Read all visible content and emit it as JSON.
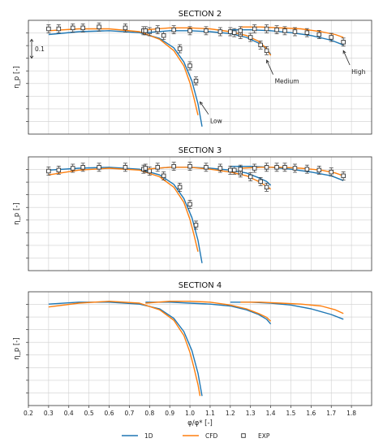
{
  "chart_data": [
    {
      "type": "line",
      "title": "SECTION 2",
      "ylabel": "η_p [-]",
      "xlim": [
        0.2,
        1.9
      ],
      "scale_annotation": "0.1",
      "annotations": [
        "Low",
        "Medium",
        "High"
      ],
      "series": [
        {
          "name": "1D",
          "group": "Low",
          "x": [
            0.3,
            0.45,
            0.6,
            0.75,
            0.85,
            0.92,
            0.97,
            1.01,
            1.04,
            1.06
          ],
          "y": [
            0.925,
            0.94,
            0.945,
            0.935,
            0.905,
            0.855,
            0.78,
            0.68,
            0.56,
            0.44
          ]
        },
        {
          "name": "CFD",
          "group": "Low",
          "x": [
            0.3,
            0.45,
            0.6,
            0.75,
            0.85,
            0.92,
            0.97,
            1.0,
            1.02,
            1.04
          ],
          "y": [
            0.945,
            0.955,
            0.955,
            0.94,
            0.9,
            0.84,
            0.76,
            0.67,
            0.59,
            0.5
          ]
        },
        {
          "name": "EXP",
          "group": "Low",
          "x": [
            0.3,
            0.35,
            0.42,
            0.47,
            0.55,
            0.68,
            0.77,
            0.8,
            0.87,
            0.95,
            1.0,
            1.03
          ],
          "y": [
            0.955,
            0.955,
            0.96,
            0.96,
            0.965,
            0.96,
            0.945,
            0.94,
            0.92,
            0.85,
            0.76,
            0.68
          ]
        },
        {
          "name": "1D",
          "group": "Medium",
          "x": [
            0.78,
            0.9,
            1.0,
            1.1,
            1.2,
            1.28,
            1.34,
            1.38,
            1.4
          ],
          "y": [
            0.935,
            0.945,
            0.945,
            0.94,
            0.93,
            0.91,
            0.88,
            0.85,
            0.82
          ]
        },
        {
          "name": "CFD",
          "group": "Medium",
          "x": [
            0.78,
            0.9,
            1.0,
            1.1,
            1.2,
            1.28,
            1.34,
            1.38,
            1.4
          ],
          "y": [
            0.95,
            0.96,
            0.96,
            0.955,
            0.94,
            0.92,
            0.89,
            0.85,
            0.815
          ]
        },
        {
          "name": "EXP",
          "group": "Medium",
          "x": [
            0.78,
            0.84,
            0.92,
            1.0,
            1.08,
            1.15,
            1.22,
            1.25,
            1.3,
            1.35,
            1.38
          ],
          "y": [
            0.945,
            0.95,
            0.95,
            0.945,
            0.945,
            0.94,
            0.935,
            0.925,
            0.91,
            0.87,
            0.84
          ]
        },
        {
          "name": "1D",
          "group": "High",
          "x": [
            1.2,
            1.3,
            1.4,
            1.5,
            1.6,
            1.7,
            1.76
          ],
          "y": [
            0.95,
            0.95,
            0.945,
            0.935,
            0.92,
            0.895,
            0.87
          ]
        },
        {
          "name": "CFD",
          "group": "High",
          "x": [
            1.25,
            1.35,
            1.45,
            1.55,
            1.65,
            1.72,
            1.76
          ],
          "y": [
            0.965,
            0.965,
            0.96,
            0.955,
            0.94,
            0.925,
            0.91
          ]
        },
        {
          "name": "EXP",
          "group": "High",
          "x": [
            1.2,
            1.25,
            1.32,
            1.38,
            1.43,
            1.47,
            1.52,
            1.58,
            1.64,
            1.7,
            1.76
          ],
          "y": [
            0.94,
            0.945,
            0.955,
            0.955,
            0.95,
            0.945,
            0.94,
            0.935,
            0.925,
            0.91,
            0.885
          ]
        }
      ]
    },
    {
      "type": "line",
      "title": "SECTION 3",
      "ylabel": "η_p [-]",
      "xlim": [
        0.2,
        1.9
      ],
      "series": [
        {
          "name": "1D",
          "group": "Low",
          "x": [
            0.3,
            0.45,
            0.6,
            0.75,
            0.85,
            0.92,
            0.97,
            1.01,
            1.04,
            1.06
          ],
          "y": [
            0.93,
            0.94,
            0.945,
            0.935,
            0.905,
            0.855,
            0.78,
            0.68,
            0.56,
            0.44
          ]
        },
        {
          "name": "CFD",
          "group": "Low",
          "x": [
            0.3,
            0.45,
            0.6,
            0.75,
            0.85,
            0.92,
            0.97,
            1.0,
            1.02,
            1.04
          ],
          "y": [
            0.905,
            0.93,
            0.94,
            0.93,
            0.895,
            0.84,
            0.76,
            0.67,
            0.59,
            0.5
          ]
        },
        {
          "name": "EXP",
          "group": "Low",
          "x": [
            0.3,
            0.35,
            0.42,
            0.47,
            0.55,
            0.68,
            0.77,
            0.8,
            0.87,
            0.95,
            1.0,
            1.03
          ],
          "y": [
            0.925,
            0.93,
            0.94,
            0.945,
            0.945,
            0.945,
            0.935,
            0.925,
            0.9,
            0.84,
            0.75,
            0.64
          ]
        },
        {
          "name": "1D",
          "group": "Medium",
          "x": [
            0.78,
            0.9,
            1.0,
            1.1,
            1.2,
            1.28,
            1.34,
            1.38,
            1.4
          ],
          "y": [
            0.935,
            0.945,
            0.945,
            0.94,
            0.93,
            0.915,
            0.89,
            0.87,
            0.85
          ]
        },
        {
          "name": "CFD",
          "group": "Medium",
          "x": [
            0.78,
            0.9,
            1.0,
            1.1,
            1.2,
            1.28,
            1.34,
            1.38,
            1.4
          ],
          "y": [
            0.935,
            0.945,
            0.945,
            0.935,
            0.92,
            0.9,
            0.87,
            0.845,
            0.83
          ]
        },
        {
          "name": "EXP",
          "group": "Medium",
          "x": [
            0.78,
            0.84,
            0.92,
            1.0,
            1.08,
            1.15,
            1.22,
            1.25,
            1.3,
            1.35,
            1.38
          ],
          "y": [
            0.94,
            0.945,
            0.95,
            0.95,
            0.945,
            0.94,
            0.93,
            0.915,
            0.895,
            0.87,
            0.84
          ]
        },
        {
          "name": "1D",
          "group": "High",
          "x": [
            1.2,
            1.3,
            1.4,
            1.5,
            1.6,
            1.7,
            1.76
          ],
          "y": [
            0.95,
            0.95,
            0.945,
            0.935,
            0.92,
            0.9,
            0.875
          ]
        },
        {
          "name": "CFD",
          "group": "High",
          "x": [
            1.25,
            1.35,
            1.45,
            1.55,
            1.65,
            1.72,
            1.76
          ],
          "y": [
            0.94,
            0.945,
            0.945,
            0.94,
            0.93,
            0.915,
            0.9
          ]
        },
        {
          "name": "EXP",
          "group": "High",
          "x": [
            1.2,
            1.25,
            1.32,
            1.38,
            1.43,
            1.47,
            1.52,
            1.58,
            1.64,
            1.7,
            1.76
          ],
          "y": [
            0.93,
            0.935,
            0.94,
            0.945,
            0.945,
            0.945,
            0.94,
            0.935,
            0.93,
            0.92,
            0.9
          ]
        }
      ]
    },
    {
      "type": "line",
      "title": "SECTION 4",
      "ylabel": "η_p [-]",
      "xlabel": "φ/φ* [-]",
      "xlim": [
        0.2,
        1.9
      ],
      "xticks": [
        "0.2",
        "0.3",
        "0.4",
        "0.5",
        "0.6",
        "0.7",
        "0.8",
        "0.9",
        "1.0",
        "1.1",
        "1.2",
        "1.3",
        "1.4",
        "1.5",
        "1.6",
        "1.7",
        "1.8"
      ],
      "series": [
        {
          "name": "1D",
          "group": "Low",
          "x": [
            0.3,
            0.45,
            0.6,
            0.75,
            0.85,
            0.92,
            0.97,
            1.01,
            1.04,
            1.06
          ],
          "y": [
            0.935,
            0.945,
            0.945,
            0.935,
            0.91,
            0.86,
            0.79,
            0.69,
            0.57,
            0.45
          ]
        },
        {
          "name": "CFD",
          "group": "Low",
          "x": [
            0.3,
            0.45,
            0.6,
            0.75,
            0.85,
            0.92,
            0.97,
            1.0,
            1.02,
            1.04,
            1.05
          ],
          "y": [
            0.92,
            0.94,
            0.95,
            0.94,
            0.905,
            0.85,
            0.77,
            0.68,
            0.6,
            0.51,
            0.45
          ]
        },
        {
          "name": "1D",
          "group": "Medium",
          "x": [
            0.78,
            0.9,
            1.0,
            1.1,
            1.2,
            1.28,
            1.34,
            1.38,
            1.4
          ],
          "y": [
            0.945,
            0.945,
            0.94,
            0.935,
            0.925,
            0.905,
            0.88,
            0.855,
            0.83
          ]
        },
        {
          "name": "CFD",
          "group": "Medium",
          "x": [
            0.78,
            0.9,
            1.0,
            1.1,
            1.2,
            1.28,
            1.34,
            1.38,
            1.4
          ],
          "y": [
            0.94,
            0.95,
            0.95,
            0.945,
            0.93,
            0.91,
            0.885,
            0.865,
            0.845
          ]
        },
        {
          "name": "1D",
          "group": "High",
          "x": [
            1.2,
            1.3,
            1.4,
            1.5,
            1.6,
            1.7,
            1.76
          ],
          "y": [
            0.945,
            0.945,
            0.94,
            0.93,
            0.91,
            0.88,
            0.855
          ]
        },
        {
          "name": "CFD",
          "group": "High",
          "x": [
            1.25,
            1.35,
            1.45,
            1.55,
            1.65,
            1.72,
            1.76
          ],
          "y": [
            0.945,
            0.945,
            0.94,
            0.935,
            0.925,
            0.905,
            0.885
          ]
        }
      ]
    }
  ],
  "legend": {
    "placement": "bottom",
    "items": [
      {
        "label": "1D",
        "marker": "line",
        "color": "#1f77b4"
      },
      {
        "label": "CFD",
        "marker": "line",
        "color": "#ff7f0e"
      },
      {
        "label": "EXP",
        "marker": "square",
        "color": "#333333"
      }
    ]
  },
  "colors": {
    "1D": "#1f77b4",
    "CFD": "#ff7f0e",
    "EXP": "#333333"
  }
}
